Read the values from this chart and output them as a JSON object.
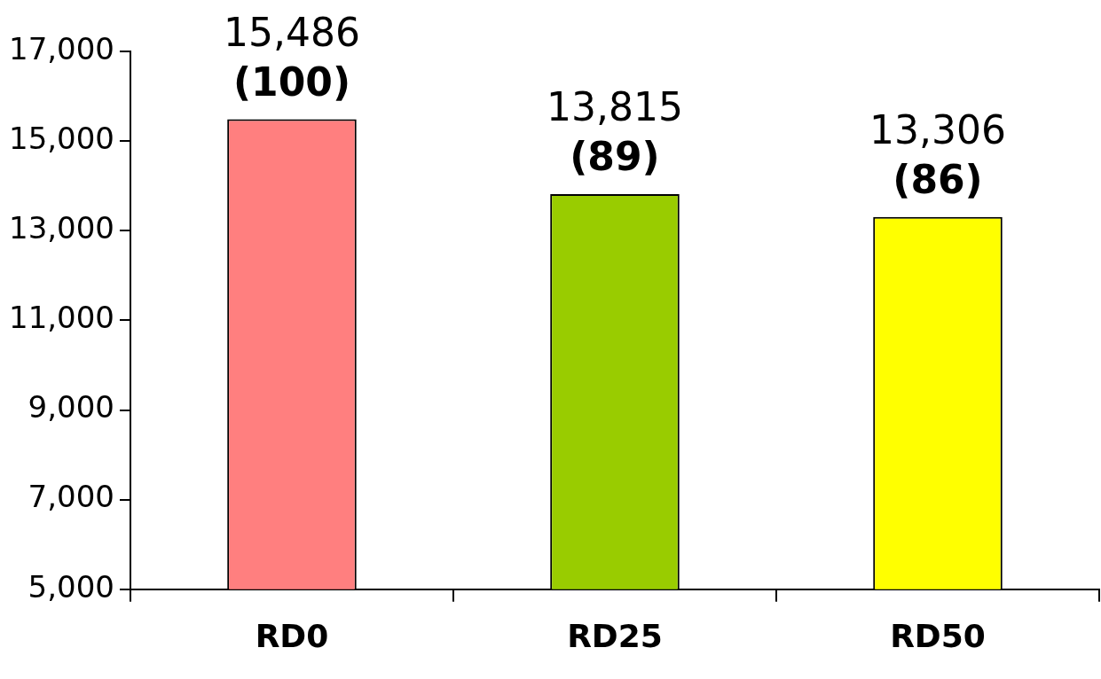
{
  "chart_data": {
    "type": "bar",
    "categories": [
      "RD0",
      "RD25",
      "RD50"
    ],
    "values": [
      15486,
      13815,
      13306
    ],
    "colors": [
      "#ff7f7f",
      "#99cc00",
      "#ffff00"
    ],
    "value_labels": [
      "15,486\n(100)",
      "13,815\n(89)",
      "13,306\n(86)"
    ],
    "ylim": [
      5000,
      17000
    ],
    "yticks": [
      {
        "value": 5000,
        "label": "5,000"
      },
      {
        "value": 7000,
        "label": "7,000"
      },
      {
        "value": 9000,
        "label": "9,000"
      },
      {
        "value": 11000,
        "label": "11,000"
      },
      {
        "value": 13000,
        "label": "13,000"
      },
      {
        "value": 15000,
        "label": "15,000"
      },
      {
        "value": 17000,
        "label": "17,000"
      }
    ],
    "grid": false,
    "legend": false
  }
}
